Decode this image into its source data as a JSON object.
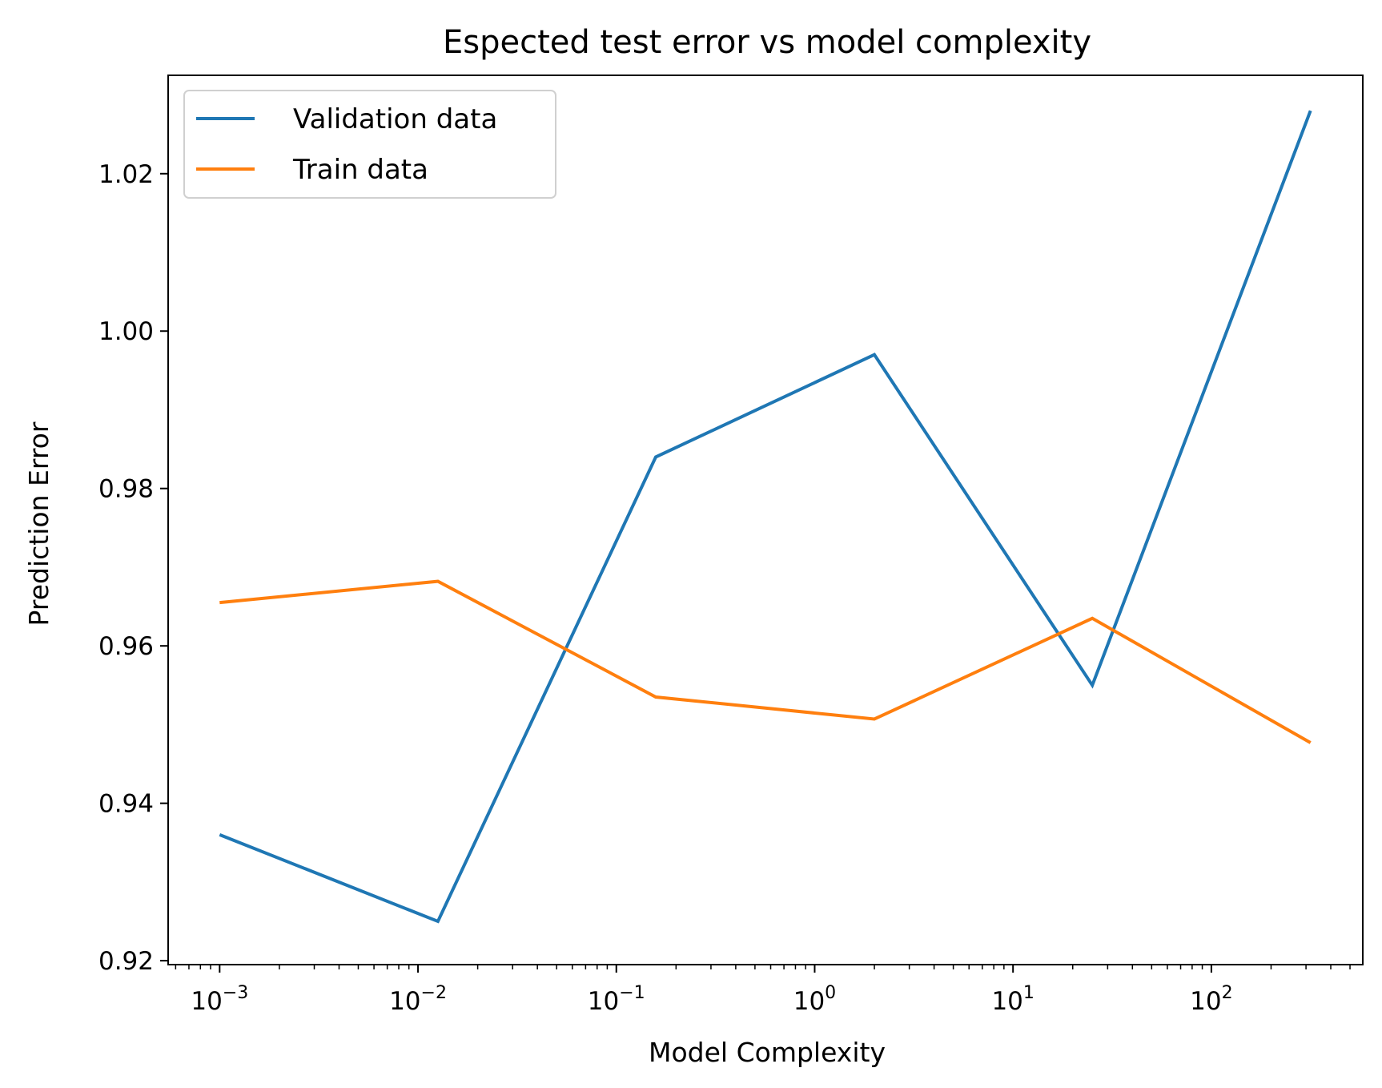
{
  "chart_data": {
    "type": "line",
    "title": "Espected test error vs model complexity",
    "xlabel": "Model Complexity",
    "ylabel": "Prediction Error",
    "xscale": "log",
    "xlim": [
      0.00055,
      580
    ],
    "ylim": [
      0.9195,
      1.0325
    ],
    "x_ticks": [
      {
        "value": 0.001,
        "base": "10",
        "exp": "−3"
      },
      {
        "value": 0.01,
        "base": "10",
        "exp": "−2"
      },
      {
        "value": 0.1,
        "base": "10",
        "exp": "−1"
      },
      {
        "value": 1,
        "base": "10",
        "exp": "0"
      },
      {
        "value": 10,
        "base": "10",
        "exp": "1"
      },
      {
        "value": 100,
        "base": "10",
        "exp": "2"
      }
    ],
    "y_ticks": [
      {
        "value": 0.92,
        "label": "0.92"
      },
      {
        "value": 0.94,
        "label": "0.94"
      },
      {
        "value": 0.96,
        "label": "0.96"
      },
      {
        "value": 0.98,
        "label": "0.98"
      },
      {
        "value": 1.0,
        "label": "1.00"
      },
      {
        "value": 1.02,
        "label": "1.02"
      }
    ],
    "x": [
      0.001,
      0.0126,
      0.158,
      2.0,
      25.1,
      316
    ],
    "series": [
      {
        "name": "Validation data",
        "color": "#1f77b4",
        "values": [
          0.936,
          0.925,
          0.984,
          0.997,
          0.955,
          1.028
        ]
      },
      {
        "name": "Train data",
        "color": "#ff7f0e",
        "values": [
          0.9655,
          0.9682,
          0.9535,
          0.9507,
          0.9635,
          0.9477
        ]
      }
    ],
    "grid": false,
    "legend_position": "top-left"
  }
}
